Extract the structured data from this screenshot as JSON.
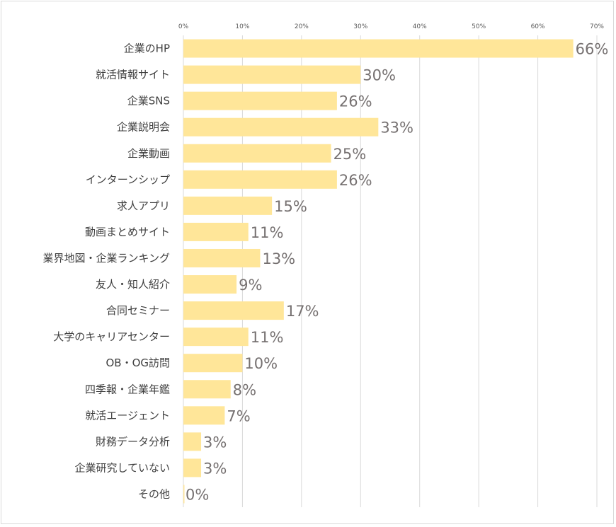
{
  "chart_data": {
    "type": "bar",
    "orientation": "horizontal",
    "categories": [
      "企業のHP",
      "就活情報サイト",
      "企業SNS",
      "企業説明会",
      "企業動画",
      "インターンシップ",
      "求人アプリ",
      "動画まとめサイト",
      "業界地図・企業ランキング",
      "友人・知人紹介",
      "合同セミナー",
      "大学のキャリアセンター",
      "OB・OG訪問",
      "四季報・企業年鑑",
      "就活エージェント",
      "財務データ分析",
      "企業研究していない",
      "その他"
    ],
    "values": [
      66,
      30,
      26,
      33,
      25,
      26,
      15,
      11,
      13,
      9,
      17,
      11,
      10,
      8,
      7,
      3,
      3,
      0
    ],
    "data_labels": [
      "66%",
      "30%",
      "26%",
      "33%",
      "25%",
      "26%",
      "15%",
      "11%",
      "13%",
      "9%",
      "17%",
      "11%",
      "10%",
      "8%",
      "7%",
      "3%",
      "3%",
      "0%"
    ],
    "xlim": [
      0,
      70
    ],
    "x_ticks": [
      "0%",
      "10%",
      "20%",
      "30%",
      "40%",
      "50%",
      "60%",
      "70%"
    ],
    "x_axis_position": "top",
    "grid": "vertical",
    "bar_color": "#FFE699",
    "label_color": "#767171"
  }
}
